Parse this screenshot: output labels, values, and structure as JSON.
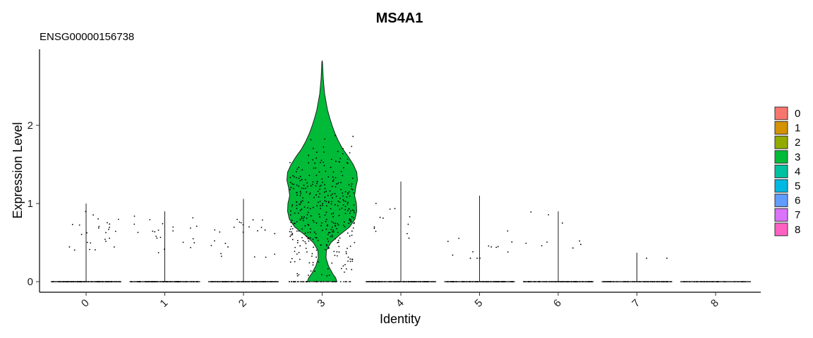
{
  "chart_data": {
    "type": "violin",
    "title": "MS4A1",
    "subtitle": "ENSG00000156738",
    "xlabel": "Identity",
    "ylabel": "Expression Level",
    "ylim": [
      -0.15,
      2.9
    ],
    "yticks": [
      0,
      1,
      2
    ],
    "grid": false,
    "legend_position": "right",
    "categories": [
      "0",
      "1",
      "2",
      "3",
      "4",
      "5",
      "6",
      "7",
      "8"
    ],
    "colors": [
      "#F8766D",
      "#D39200",
      "#93AA00",
      "#00BA38",
      "#00C19F",
      "#00B9E3",
      "#619CFF",
      "#DB72FB",
      "#FF61C3"
    ],
    "max_expression": [
      1.0,
      0.9,
      1.06,
      2.83,
      1.28,
      1.1,
      0.9,
      0.37,
      0.0
    ],
    "group3_density": [
      [
        0.0,
        0.42
      ],
      [
        0.05,
        0.38
      ],
      [
        0.1,
        0.3
      ],
      [
        0.2,
        0.18
      ],
      [
        0.3,
        0.11
      ],
      [
        0.4,
        0.12
      ],
      [
        0.5,
        0.25
      ],
      [
        0.6,
        0.5
      ],
      [
        0.7,
        0.78
      ],
      [
        0.8,
        0.93
      ],
      [
        0.9,
        0.98
      ],
      [
        1.0,
        0.97
      ],
      [
        1.1,
        0.92
      ],
      [
        1.2,
        0.95
      ],
      [
        1.3,
        1.0
      ],
      [
        1.4,
        0.98
      ],
      [
        1.5,
        0.88
      ],
      [
        1.6,
        0.74
      ],
      [
        1.7,
        0.58
      ],
      [
        1.8,
        0.46
      ],
      [
        1.9,
        0.36
      ],
      [
        2.0,
        0.28
      ],
      [
        2.1,
        0.21
      ],
      [
        2.2,
        0.15
      ],
      [
        2.3,
        0.11
      ],
      [
        2.4,
        0.07
      ],
      [
        2.5,
        0.05
      ],
      [
        2.6,
        0.03
      ],
      [
        2.7,
        0.02
      ],
      [
        2.8,
        0.01
      ],
      [
        2.83,
        0.0
      ]
    ]
  }
}
